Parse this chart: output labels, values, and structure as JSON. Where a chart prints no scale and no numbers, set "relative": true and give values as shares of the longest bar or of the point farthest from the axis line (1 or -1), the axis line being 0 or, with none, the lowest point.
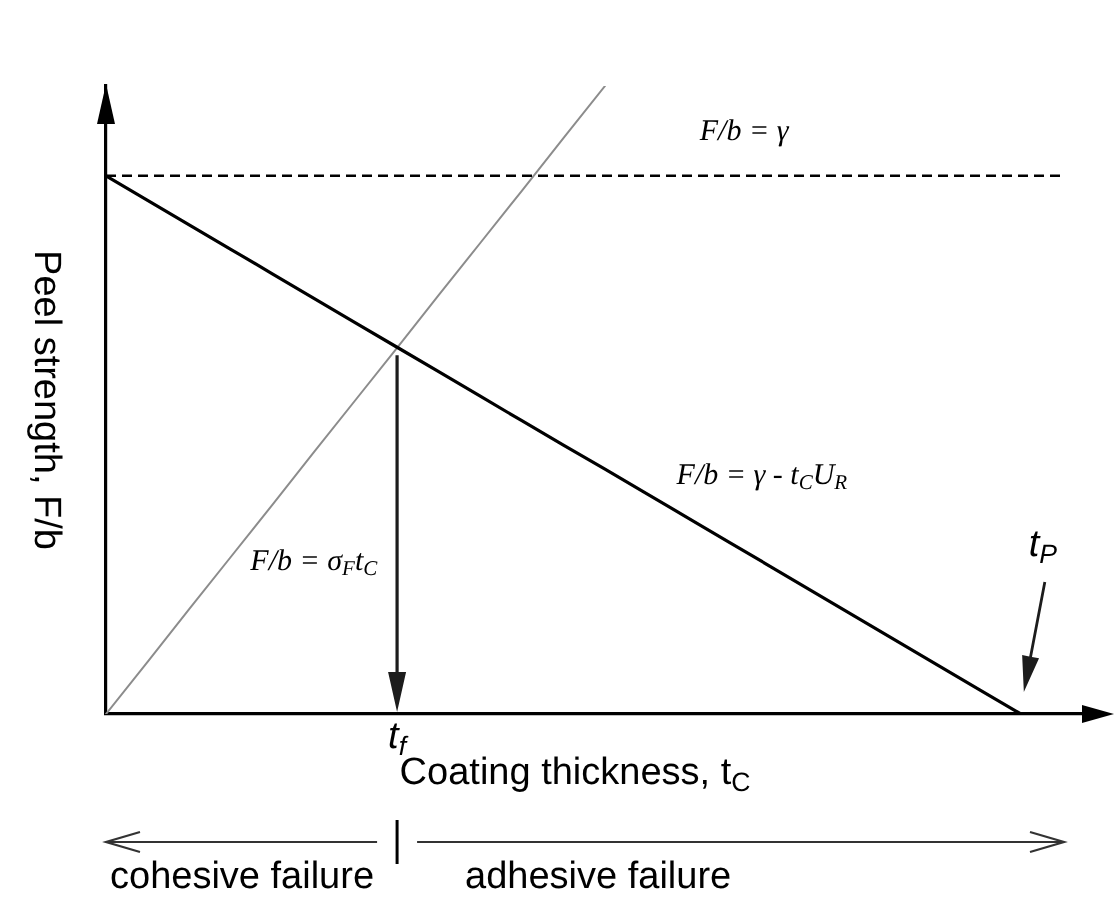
{
  "chart_data": {
    "type": "line",
    "relative": true,
    "categories": [
      null,
      null,
      null,
      null,
      null,
      null,
      null,
      null,
      null,
      null,
      null,
      null,
      null,
      null,
      null,
      null,
      null,
      null,
      null,
      null,
      null,
      null,
      null,
      null,
      null
    ],
    "series": [
      {
        "name": "F/b = γ - t$_{C}$U$_{R}$",
        "color": "#000000",
        "values": [
          0.857,
          0.818,
          0.779,
          0.74,
          0.701,
          0.662,
          0.623,
          0.584,
          0.545,
          0.506,
          0.467,
          0.428,
          0.39,
          0.351,
          0.312,
          0.273,
          0.234,
          0.195,
          0.156,
          0.117,
          0.078,
          0.039,
          0,
          null,
          null
        ]
      },
      {
        "name": "F/b = σ$_{F}$t$_{C}$",
        "color": "#8c8c8c",
        "values": [
          0,
          0.083,
          0.167,
          0.25,
          0.333,
          0.417,
          0.5,
          0.583,
          0.667,
          0.75,
          0.833,
          0.917,
          1,
          null,
          null,
          null,
          null,
          null,
          null,
          null,
          null,
          null,
          null,
          null,
          null
        ]
      }
    ],
    "xlabel": "Coating thickness, t$_{C}$",
    "ylabel": "Peel strength, F/b",
    "ref_lines": [
      {
        "axis": "y",
        "value": 0.857,
        "label": "F/b = γ",
        "color": "#000000",
        "line_style": "dashed"
      }
    ],
    "annotations": [
      "cohesive failure",
      "adhesive failure",
      "t$_{f}$",
      "t$_{P}$"
    ],
    "legend": false,
    "grid": false,
    "marker": "none",
    "line_style": "solid",
    "tick_labels": false
  }
}
